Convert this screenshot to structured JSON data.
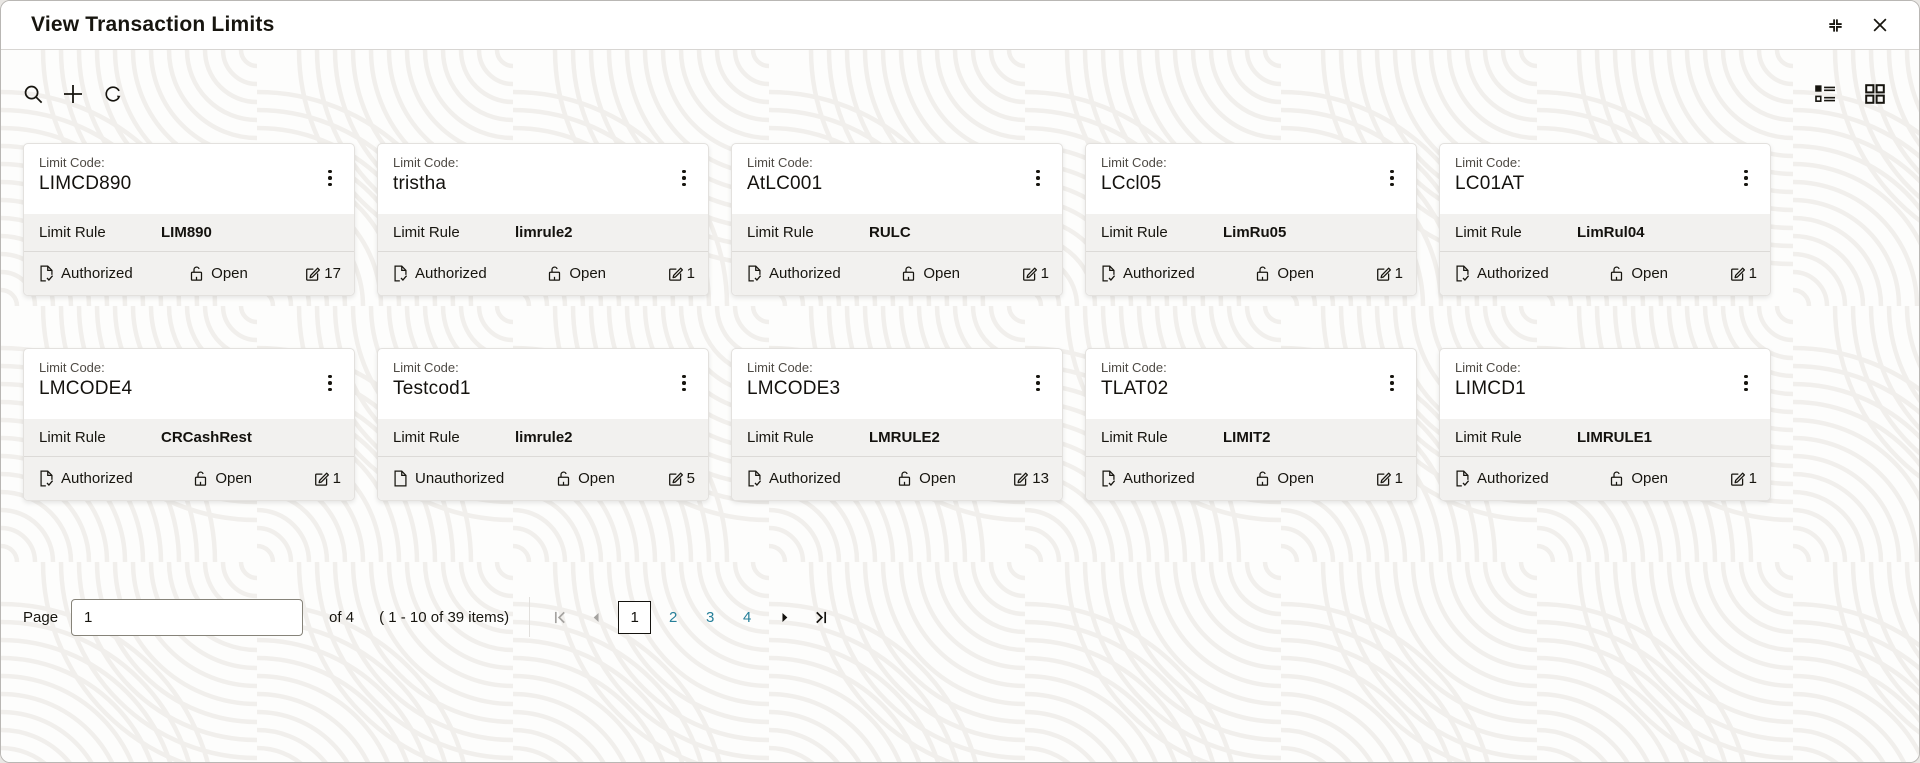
{
  "window": {
    "title": "View Transaction Limits"
  },
  "titlebar": {
    "icons": [
      "collapse",
      "close"
    ]
  },
  "toolbar": {
    "left_icons": [
      "search",
      "add",
      "refresh"
    ],
    "right_icons": [
      "list-view",
      "grid-view"
    ]
  },
  "labels": {
    "limit_code": "Limit Code:",
    "limit_rule": "Limit Rule"
  },
  "cards": [
    {
      "limit_code": "LIMCD890",
      "limit_rule": "LIM890",
      "auth_status": "Authorized",
      "record_status": "Open",
      "mod_count": "17"
    },
    {
      "limit_code": "tristha",
      "limit_rule": "limrule2",
      "auth_status": "Authorized",
      "record_status": "Open",
      "mod_count": "1"
    },
    {
      "limit_code": "AtLC001",
      "limit_rule": "RULC",
      "auth_status": "Authorized",
      "record_status": "Open",
      "mod_count": "1"
    },
    {
      "limit_code": "LCcl05",
      "limit_rule": "LimRu05",
      "auth_status": "Authorized",
      "record_status": "Open",
      "mod_count": "1"
    },
    {
      "limit_code": "LC01AT",
      "limit_rule": "LimRul04",
      "auth_status": "Authorized",
      "record_status": "Open",
      "mod_count": "1"
    },
    {
      "limit_code": "LMCODE4",
      "limit_rule": "CRCashRest",
      "auth_status": "Authorized",
      "record_status": "Open",
      "mod_count": "1"
    },
    {
      "limit_code": "Testcod1",
      "limit_rule": "limrule2",
      "auth_status": "Unauthorized",
      "record_status": "Open",
      "mod_count": "5"
    },
    {
      "limit_code": "LMCODE3",
      "limit_rule": "LMRULE2",
      "auth_status": "Authorized",
      "record_status": "Open",
      "mod_count": "13"
    },
    {
      "limit_code": "TLAT02",
      "limit_rule": "LIMIT2",
      "auth_status": "Authorized",
      "record_status": "Open",
      "mod_count": "1"
    },
    {
      "limit_code": "LIMCD1",
      "limit_rule": "LIMRULE1",
      "auth_status": "Authorized",
      "record_status": "Open",
      "mod_count": "1"
    }
  ],
  "pagination": {
    "page_label": "Page",
    "page_value": "1",
    "of_label": "of 4",
    "items_label": "( 1 - 10 of 39 items)",
    "pages": [
      "1",
      "2",
      "3",
      "4"
    ],
    "current_page": "1"
  },
  "colors": {
    "link": "#267f99",
    "text": "#17150f",
    "section_bg": "#f2f1ef"
  }
}
